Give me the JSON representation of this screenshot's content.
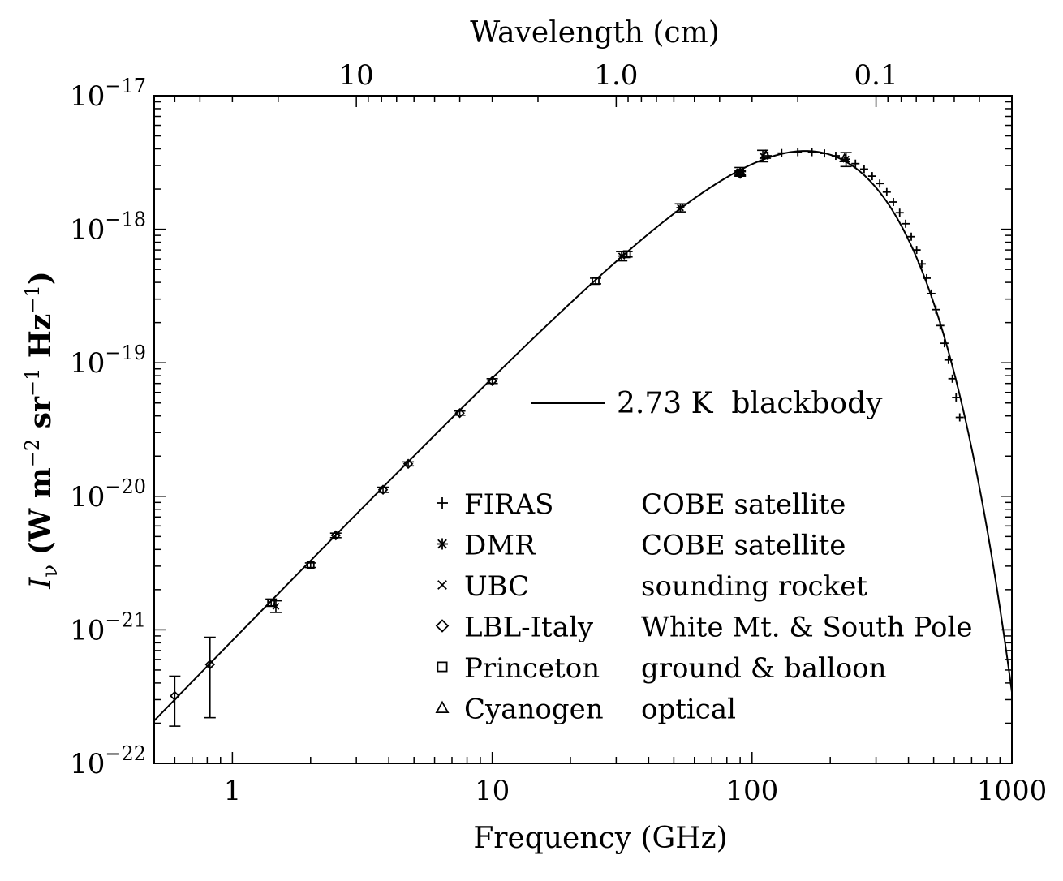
{
  "chart_data": {
    "type": "scatter",
    "xlabel": "Frequency (GHz)",
    "x2label": "Wavelength (cm)",
    "ylabel_main": "I",
    "ylabel_sub": "ν",
    "ylabel_units_parts": [
      {
        "t": "(W m",
        "sup": false
      },
      {
        "t": "−2",
        "sup": true
      },
      {
        "t": " sr",
        "sup": false
      },
      {
        "t": "−1",
        "sup": true
      },
      {
        "t": " Hz",
        "sup": false
      },
      {
        "t": "−1",
        "sup": true
      },
      {
        "t": ")",
        "sup": false
      }
    ],
    "x_scale": "log",
    "y_scale": "log",
    "xlim": [
      0.5,
      1000
    ],
    "ylim": [
      1e-22,
      1e-17
    ],
    "x_ticks": [
      {
        "value": 1,
        "label": "1"
      },
      {
        "value": 10,
        "label": "10"
      },
      {
        "value": 100,
        "label": "100"
      },
      {
        "value": 1000,
        "label": "1000"
      }
    ],
    "x2_ticks": [
      {
        "value": 3,
        "label": "10"
      },
      {
        "value": 30,
        "label": "1.0"
      },
      {
        "value": 300,
        "label": "0.1"
      }
    ],
    "y_ticks": [
      {
        "value": 1e-17,
        "base": "10",
        "exp": "−17"
      },
      {
        "value": 1e-18,
        "base": "10",
        "exp": "−18"
      },
      {
        "value": 1e-19,
        "base": "10",
        "exp": "−19"
      },
      {
        "value": 1e-20,
        "base": "10",
        "exp": "−20"
      },
      {
        "value": 1e-21,
        "base": "10",
        "exp": "−21"
      },
      {
        "value": 1e-22,
        "base": "10",
        "exp": "−22"
      }
    ],
    "curve": {
      "label": "2.73 K  blackbody",
      "temperature_K": 2.73
    },
    "legend": [
      {
        "marker": "plus",
        "name": "FIRAS",
        "desc": "COBE satellite"
      },
      {
        "marker": "asterisk",
        "name": "DMR",
        "desc": "COBE satellite"
      },
      {
        "marker": "cross",
        "name": "UBC",
        "desc": "sounding rocket"
      },
      {
        "marker": "diamond",
        "name": "LBL-Italy",
        "desc": "White Mt. & South Pole"
      },
      {
        "marker": "square",
        "name": "Princeton",
        "desc": "ground & balloon"
      },
      {
        "marker": "triangle",
        "name": "Cyanogen",
        "desc": "optical"
      }
    ],
    "series": [
      {
        "name": "FIRAS",
        "marker": "plus",
        "x": [
          115,
          130,
          150,
          170,
          190,
          210,
          230,
          250,
          270,
          290,
          310,
          330,
          350,
          370,
          390,
          410,
          430,
          450,
          470,
          490,
          510,
          530,
          550,
          570,
          590,
          610,
          630
        ],
        "y": [
          3.55e-18,
          3.72e-18,
          3.78e-18,
          3.78e-18,
          3.7e-18,
          3.55e-18,
          3.35e-18,
          3.1e-18,
          2.82e-18,
          2.5e-18,
          2.2e-18,
          1.9e-18,
          1.6e-18,
          1.33e-18,
          1.1e-18,
          8.8e-19,
          7e-19,
          5.5e-19,
          4.3e-19,
          3.3e-19,
          2.5e-19,
          1.9e-19,
          1.4e-19,
          1.05e-19,
          7.6e-20,
          5.5e-20,
          3.9e-20
        ],
        "yerr": [
          0,
          0,
          0,
          0,
          0,
          0,
          0,
          0,
          0,
          0,
          0,
          0,
          0,
          0,
          0,
          0,
          0,
          0,
          0,
          0,
          0,
          0,
          0,
          0,
          0,
          0,
          0
        ]
      },
      {
        "name": "DMR",
        "marker": "asterisk",
        "x": [
          31.5,
          53,
          90
        ],
        "y": [
          6.3e-19,
          1.45e-18,
          2.7e-18
        ],
        "yerr": [
          5e-20,
          1e-19,
          2e-19
        ]
      },
      {
        "name": "UBC",
        "marker": "cross",
        "x": [
          1.47,
          110,
          230
        ],
        "y": [
          1.5e-21,
          3.55e-18,
          3.35e-18
        ],
        "yerr": [
          1.5e-22,
          3.5e-19,
          4e-19
        ]
      },
      {
        "name": "LBL-Italy",
        "marker": "diamond",
        "x": [
          0.6,
          0.82,
          2.5,
          3.8,
          4.75,
          7.5,
          10,
          90
        ],
        "y": [
          3.2e-22,
          5.5e-22,
          5.1e-21,
          1.12e-20,
          1.75e-20,
          4.2e-20,
          7.3e-20,
          2.6e-18
        ],
        "yerr": [
          1.3e-22,
          3.3e-22,
          2e-22,
          5e-22,
          6e-22,
          1.5e-21,
          3e-21,
          1e-19
        ]
      },
      {
        "name": "Princeton",
        "marker": "square",
        "x": [
          1.41,
          2.0,
          25,
          33,
          90
        ],
        "y": [
          1.6e-21,
          3.05e-21,
          4.1e-19,
          6.5e-19,
          2.65e-18
        ],
        "yerr": [
          1e-22,
          1.2e-22,
          2e-20,
          3e-20,
          1e-19
        ]
      },
      {
        "name": "Cyanogen",
        "marker": "triangle",
        "x": [
          113,
          227
        ],
        "y": [
          3.6e-18,
          3.4e-18
        ],
        "yerr": [
          0,
          0
        ]
      }
    ]
  }
}
